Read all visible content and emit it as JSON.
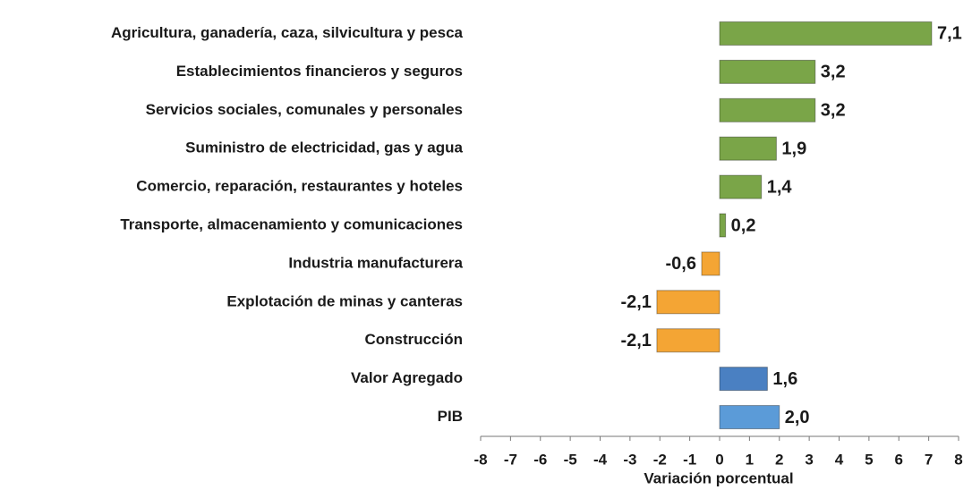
{
  "chart_data": {
    "type": "barh",
    "categories": [
      "Agricultura, ganadería, caza, silvicultura y pesca",
      "Establecimientos financieros y seguros",
      "Servicios sociales, comunales y personales",
      "Suministro de electricidad, gas y agua",
      "Comercio, reparación, restaurantes y hoteles",
      "Transporte, almacenamiento y comunicaciones",
      "Industria manufacturera",
      "Explotación de minas y canteras",
      "Construcción",
      "Valor Agregado",
      "PIB"
    ],
    "values": [
      7.1,
      3.2,
      3.2,
      1.9,
      1.4,
      0.2,
      -0.6,
      -2.1,
      -2.1,
      1.6,
      2.0
    ],
    "value_labels": [
      "7,1",
      "3,2",
      "3,2",
      "1,9",
      "1,4",
      "0,2",
      "-0,6",
      "-2,1",
      "-2,1",
      "1,6",
      "2,0"
    ],
    "colors": [
      "#7aa548",
      "#7aa548",
      "#7aa548",
      "#7aa548",
      "#7aa548",
      "#7aa548",
      "#f4a534",
      "#f4a534",
      "#f4a534",
      "#4a80c2",
      "#5b9bd8"
    ],
    "xlabel": "Variación porcentual",
    "xlim": [
      -8,
      8
    ],
    "xticks": [
      -8,
      -7,
      -6,
      -5,
      -4,
      -3,
      -2,
      -1,
      0,
      1,
      2,
      3,
      4,
      5,
      6,
      7,
      8
    ]
  }
}
